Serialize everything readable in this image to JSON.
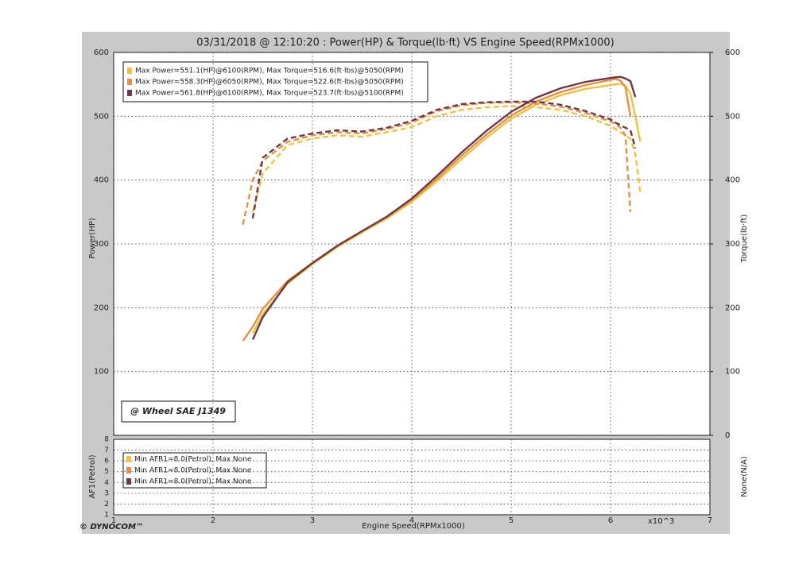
{
  "chart_data": {
    "type": "line",
    "title": "03/31/2018 @ 12:10:20 : Power(HP) & Torque(lb·ft) VS Engine Speed(RPMx1000)",
    "ylabel": "Power(HP)",
    "y2label": "Torque(lb·ft)",
    "xlabel": "Engine Speed(RPMx1000)",
    "x_multiplier": "x10^3",
    "annotation": "@ Wheel SAE J1349",
    "brand": "© DYNOCOM™",
    "grid": true,
    "xlim": [
      1,
      7
    ],
    "xticks": [
      1,
      2,
      3,
      4,
      5,
      6,
      7
    ],
    "ylim": [
      0,
      600
    ],
    "yticks": [
      100,
      200,
      300,
      400,
      500,
      600
    ],
    "y2lim": [
      0,
      600
    ],
    "y2ticks": [
      0,
      100,
      200,
      300,
      400,
      500,
      600
    ],
    "x": [
      2.3,
      2.4,
      2.5,
      2.75,
      3.0,
      3.25,
      3.5,
      3.75,
      4.0,
      4.25,
      4.5,
      4.75,
      5.0,
      5.25,
      5.5,
      5.75,
      6.0,
      6.05,
      6.1,
      6.15,
      6.2,
      6.25,
      6.3
    ],
    "series": [
      {
        "name": "Max Power=551.1(HP)@6100(RPM), Max Torque=516.6(ft·lbs)@5050(RPM)",
        "color": "#f2c040",
        "values": [
          null,
          160,
          190,
          238,
          268,
          295,
          318,
          340,
          366,
          398,
          433,
          466,
          496,
          518,
          533,
          543,
          549,
          550,
          551.1,
          548,
          535,
          500,
          460
        ],
        "torque": [
          null,
          350,
          410,
          455,
          465,
          470,
          468,
          475,
          483,
          500,
          510,
          514,
          516,
          514,
          510,
          500,
          485,
          480,
          475,
          470,
          465,
          440,
          380
        ]
      },
      {
        "name": "Max Power=558.3(HP)@6050(RPM), Max Torque=522.6(ft·lbs)@5050(RPM)",
        "color": "#e0904a",
        "values": [
          148,
          170,
          198,
          242,
          270,
          297,
          320,
          342,
          369,
          402,
          438,
          471,
          501,
          523,
          538,
          549,
          557,
          558.3,
          556,
          545,
          500,
          null,
          null
        ],
        "torque": [
          330,
          400,
          430,
          460,
          470,
          475,
          473,
          480,
          490,
          508,
          517,
          521,
          522,
          520,
          515,
          505,
          492,
          488,
          482,
          470,
          350,
          null,
          null
        ]
      },
      {
        "name": "Max Power=561.8(HP)@6100(RPM), Max Torque=523.7(ft·lbs)@5100(RPM)",
        "color": "#6a3a4a",
        "values": [
          null,
          150,
          185,
          240,
          270,
          297,
          320,
          343,
          371,
          406,
          443,
          477,
          507,
          529,
          544,
          554,
          560,
          561,
          561.8,
          559,
          555,
          530,
          null
        ],
        "torque": [
          null,
          340,
          435,
          465,
          473,
          478,
          476,
          482,
          493,
          510,
          519,
          522,
          523,
          523,
          518,
          508,
          495,
          490,
          486,
          482,
          478,
          450,
          null
        ]
      }
    ],
    "afr_panel": {
      "ylabel": "AF1(Petrol)",
      "y2label": "None(N/A)",
      "ylim": [
        1,
        8
      ],
      "yticks": [
        1,
        2,
        3,
        4,
        5,
        6,
        7,
        8
      ],
      "legend": [
        {
          "name": "Min AFR1=8.0(Petrol), Max None",
          "color": "#f2c040"
        },
        {
          "name": "Min AFR1=8.0(Petrol), Max None",
          "color": "#e0904a"
        },
        {
          "name": "Min AFR1=8.0(Petrol), Max None",
          "color": "#6a3a4a"
        }
      ]
    }
  }
}
